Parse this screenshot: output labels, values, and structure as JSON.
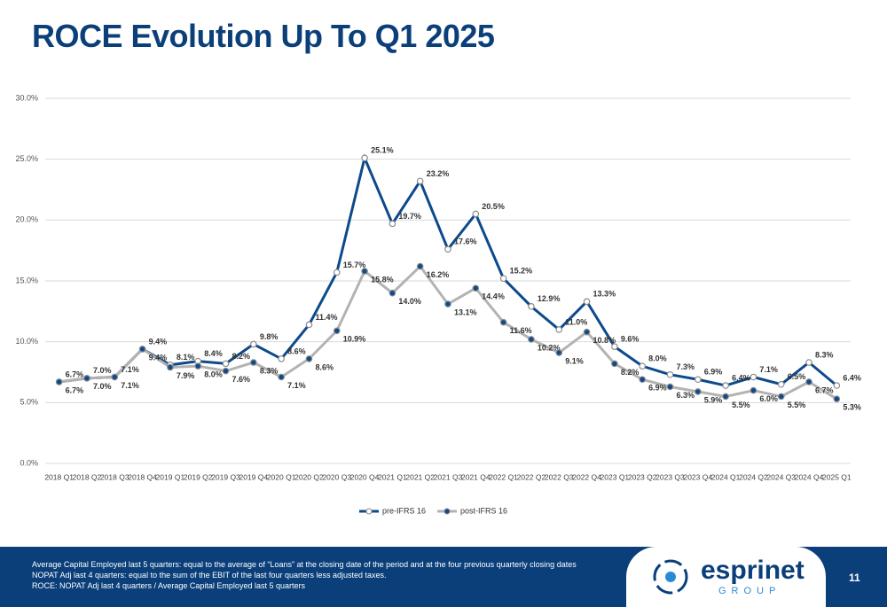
{
  "chart_data": {
    "type": "line",
    "title": "ROCE Evolution Up To Q1 2025",
    "categories": [
      "2018 Q1",
      "2018 Q2",
      "2018 Q3",
      "2018 Q4",
      "2019 Q1",
      "2019 Q2",
      "2019 Q3",
      "2019 Q4",
      "2020 Q1",
      "2020 Q2",
      "2020 Q3",
      "2020 Q4",
      "2021 Q1",
      "2021 Q2",
      "2021 Q3",
      "2021 Q4",
      "2022 Q1",
      "2022 Q2",
      "2022 Q3",
      "2022 Q4",
      "2023 Q1",
      "2023 Q2",
      "2023 Q3",
      "2023 Q4",
      "2024 Q1",
      "2024 Q2",
      "2024 Q3",
      "2024 Q4",
      "2025 Q1"
    ],
    "series": [
      {
        "name": "pre-IFRS 16",
        "color": "#0d4a8c",
        "values": [
          6.7,
          7.0,
          7.1,
          9.4,
          8.1,
          8.4,
          8.2,
          9.8,
          8.6,
          11.4,
          15.7,
          25.1,
          19.7,
          23.2,
          17.6,
          20.5,
          15.2,
          12.9,
          11.0,
          13.3,
          9.6,
          8.0,
          7.3,
          6.9,
          6.4,
          7.1,
          6.5,
          8.3,
          6.4
        ],
        "value_labels": [
          "6.7%",
          "7.0%",
          "7.1%",
          "9.4%",
          "8.1%",
          "8.4%",
          "8.2%",
          "9.8%",
          "8.6%",
          "11.4%",
          "15.7%",
          "25.1%",
          "19.7%",
          "23.2%",
          "17.6%",
          "20.5%",
          "15.2%",
          "12.9%",
          "11.0%",
          "13.3%",
          "9.6%",
          "8.0%",
          "7.3%",
          "6.9%",
          "6.4%",
          "7.1%",
          "6.5%",
          "8.3%",
          "6.4%"
        ]
      },
      {
        "name": "post-IFRS 16",
        "color": "#b3b3b3",
        "values": [
          6.7,
          7.0,
          7.1,
          9.4,
          7.9,
          8.0,
          7.6,
          8.3,
          7.1,
          8.6,
          10.9,
          15.8,
          14.0,
          16.2,
          13.1,
          14.4,
          11.6,
          10.2,
          9.1,
          10.8,
          8.2,
          6.9,
          6.3,
          5.9,
          5.5,
          6.0,
          5.5,
          6.7,
          5.3
        ],
        "value_labels": [
          "6.7%",
          "7.0%",
          "7.1%",
          "9.4%",
          "7.9%",
          "8.0%",
          "7.6%",
          "8.3%",
          "7.1%",
          "8.6%",
          "10.9%",
          "15.8%",
          "14.0%",
          "16.2%",
          "13.1%",
          "14.4%",
          "11.6%",
          "10.2%",
          "9.1%",
          "10.8%",
          "8.2%",
          "6.9%",
          "6.3%",
          "5.9%",
          "5.5%",
          "6.0%",
          "5.5%",
          "6.7%",
          "5.3%"
        ]
      }
    ],
    "ylim": [
      0,
      30
    ],
    "yticks": [
      {
        "value": 0,
        "label": "0.0%"
      },
      {
        "value": 5,
        "label": "5.0%"
      },
      {
        "value": 10,
        "label": "10.0%"
      },
      {
        "value": 15,
        "label": "15.0%"
      },
      {
        "value": 20,
        "label": "20.0%"
      },
      {
        "value": 25,
        "label": "25.0%"
      },
      {
        "value": 30,
        "label": "30.0%"
      }
    ],
    "grid": true,
    "legend": "bottom"
  },
  "footer": {
    "notes": [
      "Average Capital Employed last 5 quarters: equal to the average of “Loans” at the closing date of the period and at the four previous quarterly closing dates",
      "NOPAT Adj last 4 quarters: equal to the sum of the EBIT of the last four quarters less adjusted taxes.",
      "ROCE: NOPAT Adj last 4 quarters / Average Capital Employed last 5 quarters"
    ],
    "logo_name": "esprinet",
    "logo_tagline": "GROUP",
    "page_number": "11"
  }
}
